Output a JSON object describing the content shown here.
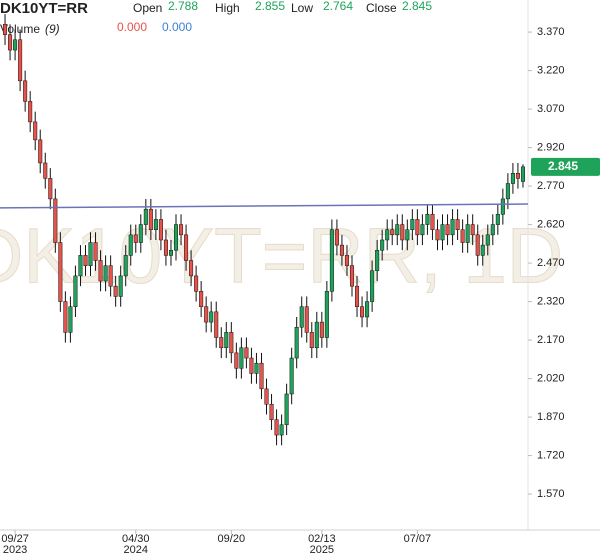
{
  "chart_data": {
    "type": "candlestick",
    "symbol": "DK10YT=RR",
    "watermark": "DK10YT=RR, 1D",
    "header": {
      "open_label": "Open",
      "open": 2.788,
      "high_label": "High",
      "high": 2.855,
      "low_label": "Low",
      "low": 2.764,
      "close_label": "Close",
      "close": 2.845
    },
    "volume": {
      "label": "Volume",
      "period": "(9)",
      "values": [
        {
          "value": 0,
          "label": "0.000",
          "color": "#e5534b"
        },
        {
          "value": 0,
          "label": "0.000",
          "color": "#3d7fd6"
        }
      ]
    },
    "up_color": "#1fa35a",
    "down_color": "#e5534b",
    "xlim": [
      -1,
      104
    ],
    "ylim": [
      1.43,
      3.495
    ],
    "yticks": [
      {
        "value": 3.37,
        "label": "3.370"
      },
      {
        "value": 3.22,
        "label": "3.220"
      },
      {
        "value": 3.07,
        "label": "3.070"
      },
      {
        "value": 2.92,
        "label": "2.920"
      },
      {
        "value": 2.77,
        "label": "2.770"
      },
      {
        "value": 2.62,
        "label": "2.620"
      },
      {
        "value": 2.47,
        "label": "2.470"
      },
      {
        "value": 2.32,
        "label": "2.320"
      },
      {
        "value": 2.17,
        "label": "2.170"
      },
      {
        "value": 2.02,
        "label": "2.020"
      },
      {
        "value": 1.87,
        "label": "1.870"
      },
      {
        "value": 1.72,
        "label": "1.720"
      },
      {
        "value": 1.57,
        "label": "1.570"
      }
    ],
    "xticks": [
      {
        "value": 2,
        "label": "09/27",
        "year": "2023"
      },
      {
        "value": 26,
        "label": "04/30",
        "year": "2024"
      },
      {
        "value": 45,
        "label": "09/20"
      },
      {
        "value": 63,
        "label": "02/13",
        "year": "2025"
      },
      {
        "value": 82,
        "label": "07/07"
      }
    ],
    "trendline": {
      "x": [
        -1,
        104
      ],
      "y": [
        2.685,
        2.7
      ],
      "color": "#6b74b8"
    },
    "open": [
      3.4,
      3.36,
      3.3,
      3.34,
      3.18,
      3.1,
      3.02,
      2.95,
      2.86,
      2.8,
      2.72,
      2.55,
      2.32,
      2.2,
      2.3,
      2.42,
      2.5,
      2.46,
      2.55,
      2.48,
      2.4,
      2.46,
      2.38,
      2.34,
      2.42,
      2.5,
      2.58,
      2.55,
      2.62,
      2.68,
      2.6,
      2.64,
      2.56,
      2.5,
      2.52,
      2.62,
      2.58,
      2.48,
      2.42,
      2.36,
      2.3,
      2.24,
      2.28,
      2.18,
      2.14,
      2.2,
      2.12,
      2.06,
      2.14,
      2.1,
      2.04,
      2.08,
      1.98,
      1.92,
      1.86,
      1.8,
      1.84,
      1.96,
      2.1,
      2.22,
      2.3,
      2.2,
      2.14,
      2.24,
      2.18,
      2.36,
      2.6,
      2.54,
      2.5,
      2.46,
      2.38,
      2.3,
      2.26,
      2.32,
      2.44,
      2.52,
      2.56,
      2.6,
      2.58,
      2.62,
      2.56,
      2.6,
      2.64,
      2.58,
      2.62,
      2.66,
      2.6,
      2.56,
      2.62,
      2.58,
      2.64,
      2.6,
      2.55,
      2.62,
      2.58,
      2.5,
      2.54,
      2.58,
      2.62,
      2.66,
      2.72,
      2.78,
      2.82,
      2.788
    ],
    "high": [
      3.44,
      3.4,
      3.38,
      3.38,
      3.22,
      3.14,
      3.06,
      2.99,
      2.9,
      2.84,
      2.76,
      2.59,
      2.36,
      2.34,
      2.46,
      2.54,
      2.54,
      2.59,
      2.59,
      2.52,
      2.5,
      2.5,
      2.42,
      2.46,
      2.54,
      2.62,
      2.62,
      2.66,
      2.72,
      2.72,
      2.68,
      2.68,
      2.6,
      2.56,
      2.66,
      2.66,
      2.62,
      2.52,
      2.46,
      2.4,
      2.34,
      2.32,
      2.32,
      2.22,
      2.24,
      2.24,
      2.16,
      2.18,
      2.18,
      2.14,
      2.12,
      2.12,
      2.02,
      1.96,
      1.9,
      1.88,
      2.0,
      2.14,
      2.26,
      2.34,
      2.34,
      2.24,
      2.28,
      2.28,
      2.4,
      2.64,
      2.64,
      2.58,
      2.54,
      2.5,
      2.42,
      2.34,
      2.36,
      2.48,
      2.56,
      2.6,
      2.64,
      2.64,
      2.66,
      2.66,
      2.64,
      2.68,
      2.68,
      2.66,
      2.7,
      2.7,
      2.64,
      2.66,
      2.66,
      2.68,
      2.68,
      2.64,
      2.66,
      2.66,
      2.62,
      2.58,
      2.62,
      2.66,
      2.7,
      2.76,
      2.82,
      2.86,
      2.86,
      2.855
    ],
    "low": [
      3.32,
      3.26,
      3.26,
      3.14,
      3.06,
      2.98,
      2.91,
      2.82,
      2.76,
      2.68,
      2.51,
      2.28,
      2.16,
      2.16,
      2.26,
      2.38,
      2.42,
      2.42,
      2.44,
      2.36,
      2.36,
      2.34,
      2.3,
      2.3,
      2.38,
      2.46,
      2.51,
      2.51,
      2.58,
      2.56,
      2.56,
      2.52,
      2.46,
      2.46,
      2.48,
      2.54,
      2.44,
      2.38,
      2.32,
      2.26,
      2.2,
      2.2,
      2.14,
      2.1,
      2.1,
      2.08,
      2.02,
      2.02,
      2.06,
      2.0,
      2.0,
      1.94,
      1.88,
      1.82,
      1.76,
      1.76,
      1.8,
      1.92,
      2.06,
      2.18,
      2.16,
      2.1,
      2.1,
      2.14,
      2.14,
      2.32,
      2.5,
      2.46,
      2.42,
      2.34,
      2.26,
      2.22,
      2.22,
      2.28,
      2.4,
      2.48,
      2.52,
      2.54,
      2.54,
      2.52,
      2.52,
      2.56,
      2.54,
      2.54,
      2.58,
      2.56,
      2.52,
      2.52,
      2.54,
      2.54,
      2.56,
      2.51,
      2.51,
      2.54,
      2.46,
      2.46,
      2.5,
      2.54,
      2.58,
      2.62,
      2.68,
      2.74,
      2.76,
      2.764
    ],
    "close": [
      3.36,
      3.3,
      3.34,
      3.18,
      3.1,
      3.02,
      2.95,
      2.86,
      2.8,
      2.72,
      2.55,
      2.32,
      2.2,
      2.3,
      2.42,
      2.5,
      2.46,
      2.55,
      2.48,
      2.4,
      2.46,
      2.38,
      2.34,
      2.42,
      2.5,
      2.58,
      2.55,
      2.62,
      2.68,
      2.6,
      2.64,
      2.56,
      2.5,
      2.52,
      2.62,
      2.58,
      2.48,
      2.42,
      2.36,
      2.3,
      2.24,
      2.28,
      2.18,
      2.14,
      2.2,
      2.12,
      2.06,
      2.14,
      2.1,
      2.04,
      2.08,
      1.98,
      1.92,
      1.86,
      1.8,
      1.84,
      1.96,
      2.1,
      2.22,
      2.3,
      2.2,
      2.14,
      2.24,
      2.18,
      2.36,
      2.6,
      2.54,
      2.5,
      2.46,
      2.38,
      2.3,
      2.26,
      2.32,
      2.44,
      2.52,
      2.56,
      2.6,
      2.58,
      2.62,
      2.56,
      2.6,
      2.64,
      2.58,
      2.62,
      2.66,
      2.6,
      2.56,
      2.62,
      2.58,
      2.64,
      2.6,
      2.55,
      2.62,
      2.58,
      2.5,
      2.54,
      2.58,
      2.62,
      2.66,
      2.72,
      2.78,
      2.82,
      2.8,
      2.845
    ]
  }
}
